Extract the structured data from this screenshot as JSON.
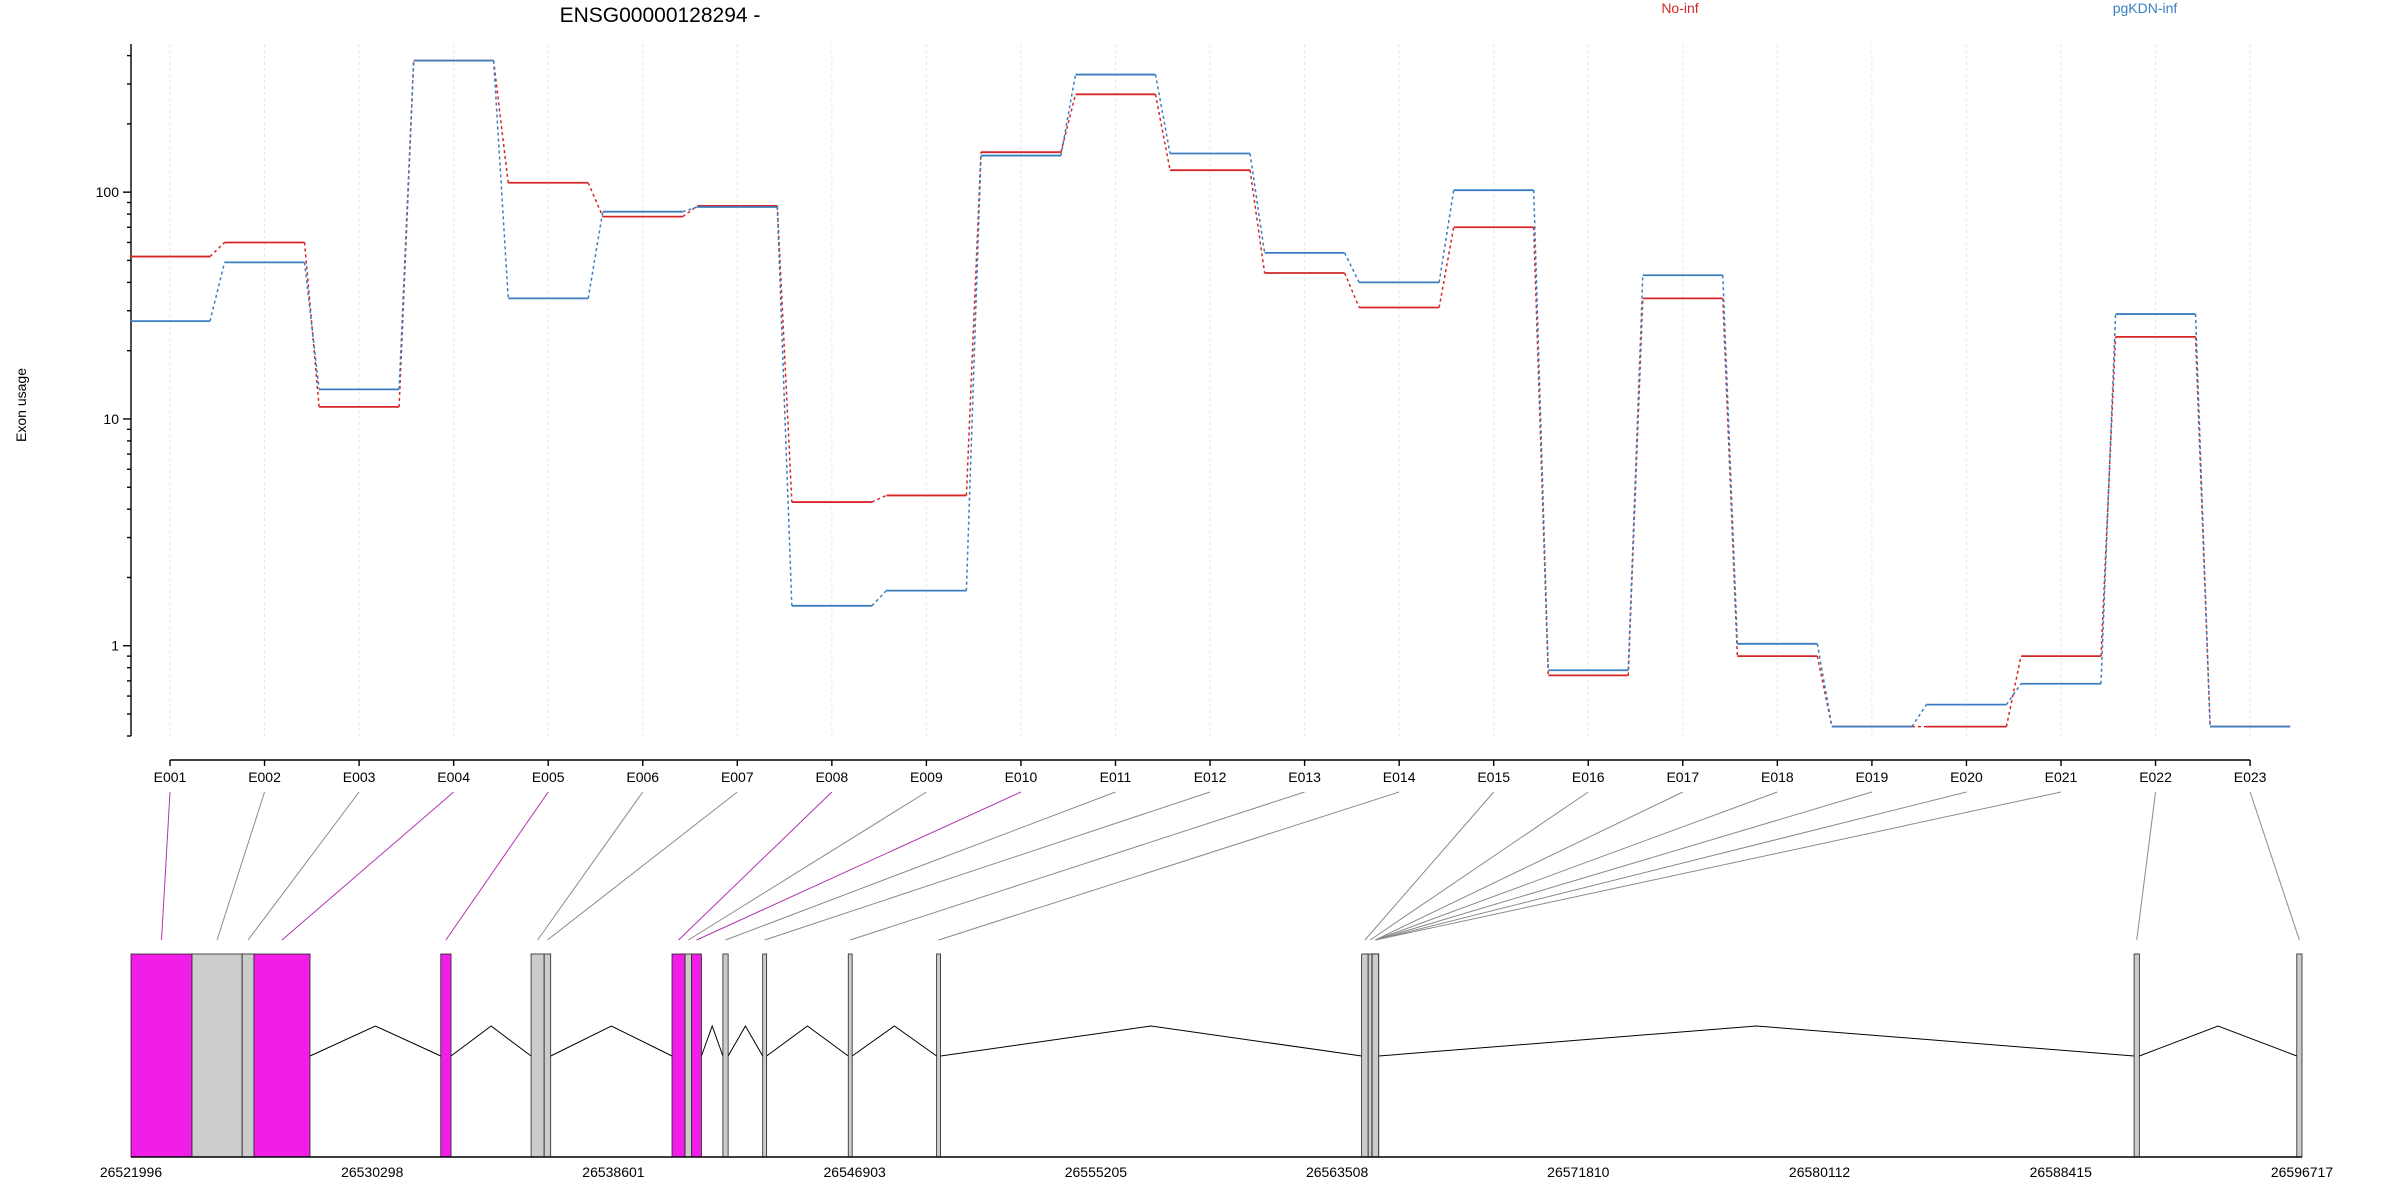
{
  "chart_data": {
    "type": "line",
    "title": "ENSG00000128294 -",
    "ylabel": "Exon usage",
    "yscale": "log",
    "ylim": [
      0.4,
      450
    ],
    "yticks": [
      1,
      10,
      100
    ],
    "ytick_labels": [
      "1",
      "10",
      "100"
    ],
    "categories": [
      "E001",
      "E002",
      "E003",
      "E004",
      "E005",
      "E006",
      "E007",
      "E008",
      "E009",
      "E010",
      "E011",
      "E012",
      "E013",
      "E014",
      "E015",
      "E016",
      "E017",
      "E018",
      "E019",
      "E020",
      "E021",
      "E022",
      "E023"
    ],
    "series": [
      {
        "name": "No-inf",
        "color": "#d62728",
        "values": [
          52,
          60,
          11.3,
          380,
          110,
          78,
          87,
          4.3,
          4.6,
          150,
          270,
          125,
          44,
          31,
          70,
          0.74,
          34,
          0.9,
          0.44,
          0.44,
          0.9,
          23,
          0.44
        ]
      },
      {
        "name": "pgKDN-inf",
        "color": "#3b7ebf",
        "values": [
          27,
          49,
          13.5,
          380,
          34,
          82,
          86,
          1.5,
          1.75,
          145,
          330,
          148,
          54,
          40,
          102,
          0.78,
          43,
          1.02,
          0.44,
          0.55,
          0.68,
          29,
          0.44
        ]
      }
    ],
    "grid": true,
    "legend_placement": "top-right",
    "gene_model": {
      "genomic_ticks": [
        "26521996",
        "26530298",
        "26538601",
        "26546903",
        "26555205",
        "26563508",
        "26571810",
        "26580112",
        "26588415",
        "26596717"
      ],
      "coord_range": [
        26521996,
        26596717
      ],
      "exons": [
        {
          "id": "E001",
          "start": 26521996,
          "end": 26524096,
          "sig": true
        },
        {
          "id": "E002",
          "start": 26524096,
          "end": 26525822,
          "sig": false
        },
        {
          "id": "E003",
          "start": 26525822,
          "end": 26526229,
          "sig": false
        },
        {
          "id": "E004",
          "start": 26526229,
          "end": 26528157,
          "sig": true
        },
        {
          "id": "E005",
          "start": 26532657,
          "end": 26533011,
          "sig": true
        },
        {
          "id": "E006",
          "start": 26535766,
          "end": 26536216,
          "sig": false
        },
        {
          "id": "E007",
          "start": 26536216,
          "end": 26536441,
          "sig": false
        },
        {
          "id": "E008",
          "start": 26540616,
          "end": 26541066,
          "sig": true
        },
        {
          "id": "E009",
          "start": 26541066,
          "end": 26541292,
          "sig": false
        },
        {
          "id": "E010",
          "start": 26541292,
          "end": 26541630,
          "sig": true
        },
        {
          "id": "E011",
          "start": 26542368,
          "end": 26542548,
          "sig": false
        },
        {
          "id": "E012",
          "start": 26543738,
          "end": 26543873,
          "sig": false
        },
        {
          "id": "E013",
          "start": 26546682,
          "end": 26546817,
          "sig": false
        },
        {
          "id": "E014",
          "start": 26549724,
          "end": 26549859,
          "sig": false
        },
        {
          "id": "E015",
          "start": 26564352,
          "end": 26564577,
          "sig": false
        },
        {
          "id": "E016",
          "start": 26564577,
          "end": 26564712,
          "sig": false
        },
        {
          "id": "E017",
          "start": 26564712,
          "end": 26564937,
          "sig": false
        },
        {
          "id": "E018",
          "start": 26564712,
          "end": 26564937,
          "sig": false
        },
        {
          "id": "E019",
          "start": 26564712,
          "end": 26564937,
          "sig": false
        },
        {
          "id": "E020",
          "start": 26564712,
          "end": 26564937,
          "sig": false
        },
        {
          "id": "E021",
          "start": 26564712,
          "end": 26564937,
          "sig": false
        },
        {
          "id": "E022",
          "start": 26590938,
          "end": 26591119,
          "sig": false
        },
        {
          "id": "E023",
          "start": 26596537,
          "end": 26596717,
          "sig": false
        }
      ],
      "colors": {
        "significant": "#f01ee6",
        "normal": "#cccccc",
        "intron": "#000000"
      }
    }
  }
}
